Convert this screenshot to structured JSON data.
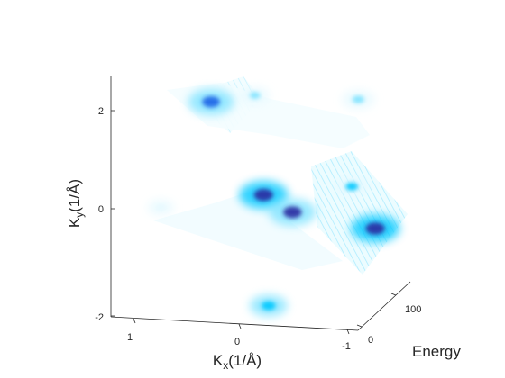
{
  "chart_data": {
    "type": "3d-surface",
    "title": "",
    "xlabel": "K",
    "xlabel_sub": "x",
    "xlabel_unit": "(1/Å)",
    "ylabel": "K",
    "ylabel_sub": "y",
    "ylabel_unit": "(1/Å)",
    "zlabel": "Energy",
    "x_ticks": [
      "1",
      "0",
      "-1"
    ],
    "y_ticks": [
      "2",
      "0",
      "-2"
    ],
    "z_ticks": [
      "0",
      "100"
    ],
    "xlim": [
      -1.1,
      1.4
    ],
    "ylim": [
      -2.1,
      2.7
    ],
    "zlim": [
      0,
      150
    ],
    "colormap": [
      "#ffffff",
      "#e6f9ff",
      "#7fe3ff",
      "#00c8ff",
      "#1e64e6",
      "#2a2aa0"
    ],
    "grid": false,
    "intensity_blobs": [
      {
        "kx": 0.35,
        "ky": 2.0,
        "energy": 40,
        "intensity": 0.85
      },
      {
        "kx": 0.05,
        "ky": 1.9,
        "energy": 80,
        "intensity": 0.35
      },
      {
        "kx": -0.85,
        "ky": 1.65,
        "energy": 120,
        "intensity": 0.45
      },
      {
        "kx": -0.25,
        "ky": 0.3,
        "energy": 20,
        "intensity": 0.95
      },
      {
        "kx": -0.4,
        "ky": -0.3,
        "energy": 60,
        "intensity": 0.9
      },
      {
        "kx": -0.75,
        "ky": -0.2,
        "energy": 130,
        "intensity": 0.5
      },
      {
        "kx": -0.95,
        "ky": -1.1,
        "energy": 140,
        "intensity": 0.95
      },
      {
        "kx": 0.75,
        "ky": 0.0,
        "energy": 10,
        "intensity": 0.25
      },
      {
        "kx": -0.3,
        "ky": -1.95,
        "energy": 20,
        "intensity": 0.6
      }
    ]
  }
}
